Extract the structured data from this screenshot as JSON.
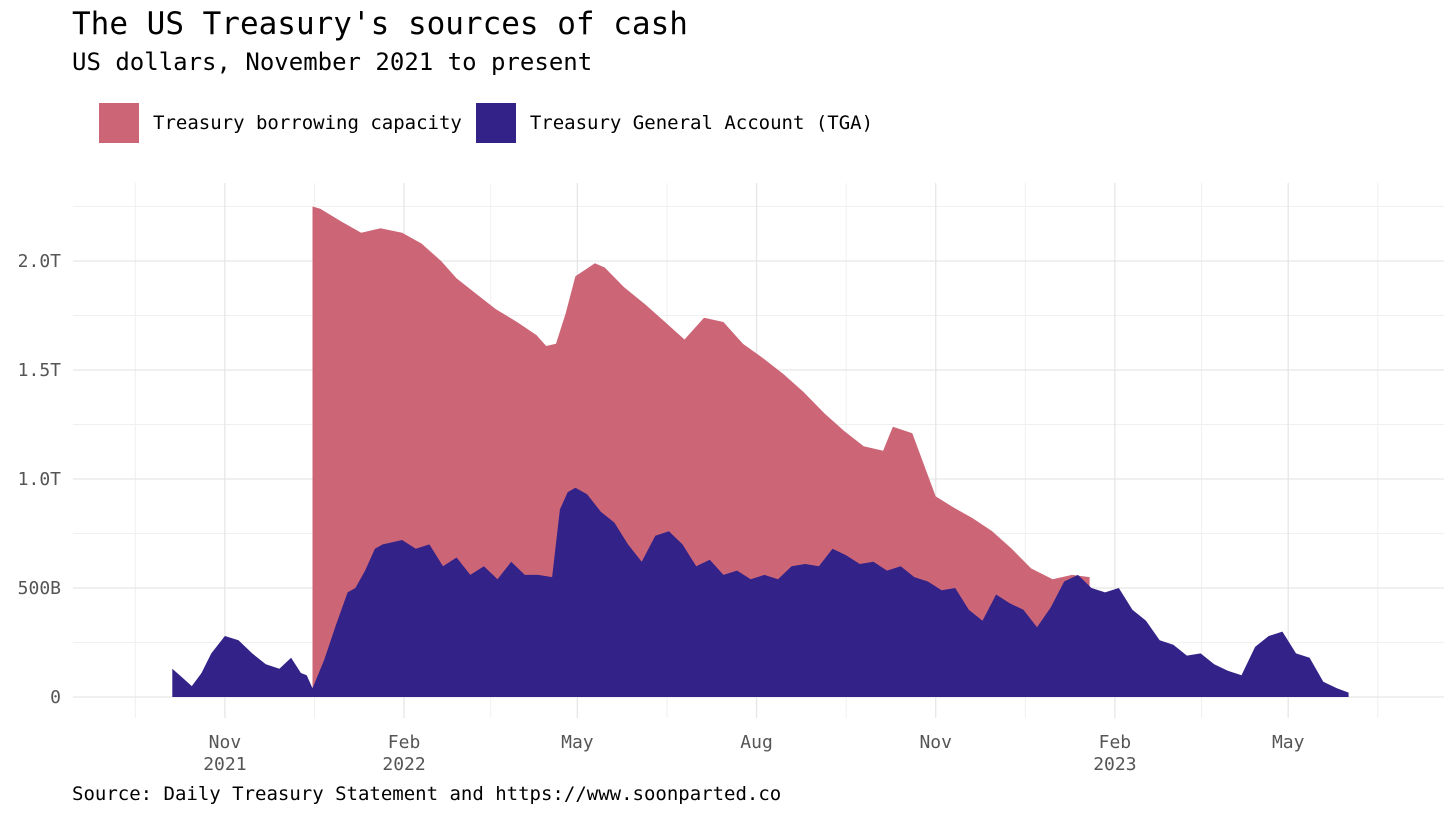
{
  "chart_data": {
    "type": "area",
    "title": "The US Treasury's sources of cash",
    "subtitle": "US dollars, November 2021 to present",
    "source": "Source: Daily Treasury Statement and https://www.soonparted.co",
    "xlabel": "",
    "ylabel": "",
    "xlim": [
      "2021-08-15",
      "2023-07-20"
    ],
    "ylim": [
      0,
      2300000000000
    ],
    "y_ticks": [
      {
        "value": 0,
        "label": "0"
      },
      {
        "value": 500000000000,
        "label": "500B"
      },
      {
        "value": 1000000000000,
        "label": "1.0T"
      },
      {
        "value": 1500000000000,
        "label": "1.5T"
      },
      {
        "value": 2000000000000,
        "label": "2.0T"
      }
    ],
    "x_ticks": [
      {
        "date": "2021-11-01",
        "label": "Nov",
        "sublabel": "2021"
      },
      {
        "date": "2022-02-01",
        "label": "Feb",
        "sublabel": "2022"
      },
      {
        "date": "2022-05-01",
        "label": "May",
        "sublabel": ""
      },
      {
        "date": "2022-08-01",
        "label": "Aug",
        "sublabel": ""
      },
      {
        "date": "2022-11-01",
        "label": "Nov",
        "sublabel": ""
      },
      {
        "date": "2023-02-01",
        "label": "Feb",
        "sublabel": "2023"
      },
      {
        "date": "2023-05-01",
        "label": "May",
        "sublabel": ""
      }
    ],
    "grid": true,
    "legend_position": "top-left",
    "series": [
      {
        "name": "Treasury borrowing capacity",
        "color": "#cc6677",
        "stack": "total",
        "x": [
          "2021-12-16",
          "2021-12-20",
          "2021-12-31",
          "2022-01-10",
          "2022-01-20",
          "2022-01-31",
          "2022-02-10",
          "2022-02-20",
          "2022-02-28",
          "2022-03-10",
          "2022-03-20",
          "2022-03-31",
          "2022-04-10",
          "2022-04-15",
          "2022-04-20",
          "2022-04-25",
          "2022-04-30",
          "2022-05-05",
          "2022-05-10",
          "2022-05-15",
          "2022-05-25",
          "2022-06-05",
          "2022-06-15",
          "2022-06-25",
          "2022-07-05",
          "2022-07-15",
          "2022-07-25",
          "2022-08-05",
          "2022-08-15",
          "2022-08-25",
          "2022-09-05",
          "2022-09-15",
          "2022-09-25",
          "2022-10-05",
          "2022-10-10",
          "2022-10-20",
          "2022-11-01",
          "2022-11-10",
          "2022-11-20",
          "2022-11-30",
          "2022-12-10",
          "2022-12-20",
          "2022-12-31",
          "2023-01-10",
          "2023-01-19"
        ],
        "values": [
          2250000000000,
          2240000000000,
          2180000000000,
          2130000000000,
          2150000000000,
          2130000000000,
          2080000000000,
          2000000000000,
          1920000000000,
          1850000000000,
          1780000000000,
          1720000000000,
          1660000000000,
          1610000000000,
          1620000000000,
          1760000000000,
          1930000000000,
          1960000000000,
          1990000000000,
          1970000000000,
          1880000000000,
          1800000000000,
          1720000000000,
          1640000000000,
          1740000000000,
          1720000000000,
          1620000000000,
          1550000000000,
          1480000000000,
          1400000000000,
          1300000000000,
          1220000000000,
          1150000000000,
          1130000000000,
          1240000000000,
          1210000000000,
          920000000000,
          870000000000,
          820000000000,
          760000000000,
          680000000000,
          590000000000,
          540000000000,
          560000000000,
          550000000000
        ]
      },
      {
        "name": "Treasury General Account (TGA)",
        "color": "#332288",
        "stack": "base",
        "x": [
          "2021-10-05",
          "2021-10-10",
          "2021-10-15",
          "2021-10-20",
          "2021-10-25",
          "2021-11-01",
          "2021-11-08",
          "2021-11-15",
          "2021-11-22",
          "2021-11-29",
          "2021-12-05",
          "2021-12-10",
          "2021-12-13",
          "2021-12-16",
          "2021-12-22",
          "2021-12-28",
          "2022-01-03",
          "2022-01-07",
          "2022-01-12",
          "2022-01-17",
          "2022-01-21",
          "2022-01-26",
          "2022-01-31",
          "2022-02-07",
          "2022-02-14",
          "2022-02-21",
          "2022-02-28",
          "2022-03-07",
          "2022-03-14",
          "2022-03-21",
          "2022-03-28",
          "2022-04-04",
          "2022-04-11",
          "2022-04-18",
          "2022-04-22",
          "2022-04-26",
          "2022-04-30",
          "2022-05-06",
          "2022-05-13",
          "2022-05-20",
          "2022-05-27",
          "2022-06-03",
          "2022-06-10",
          "2022-06-17",
          "2022-06-24",
          "2022-07-01",
          "2022-07-08",
          "2022-07-15",
          "2022-07-22",
          "2022-07-29",
          "2022-08-05",
          "2022-08-12",
          "2022-08-19",
          "2022-08-26",
          "2022-09-02",
          "2022-09-09",
          "2022-09-16",
          "2022-09-23",
          "2022-09-30",
          "2022-10-07",
          "2022-10-14",
          "2022-10-21",
          "2022-10-28",
          "2022-11-04",
          "2022-11-11",
          "2022-11-18",
          "2022-11-25",
          "2022-12-02",
          "2022-12-09",
          "2022-12-16",
          "2022-12-23",
          "2022-12-30",
          "2023-01-06",
          "2023-01-13",
          "2023-01-20",
          "2023-01-27",
          "2023-02-03",
          "2023-02-10",
          "2023-02-17",
          "2023-02-24",
          "2023-03-03",
          "2023-03-10",
          "2023-03-17",
          "2023-03-24",
          "2023-03-31",
          "2023-04-07",
          "2023-04-14",
          "2023-04-21",
          "2023-04-28",
          "2023-05-05",
          "2023-05-12",
          "2023-05-19",
          "2023-05-26",
          "2023-06-01"
        ],
        "values": [
          130000000000,
          90000000000,
          50000000000,
          110000000000,
          200000000000,
          280000000000,
          260000000000,
          200000000000,
          150000000000,
          130000000000,
          180000000000,
          110000000000,
          100000000000,
          40000000000,
          170000000000,
          330000000000,
          480000000000,
          500000000000,
          580000000000,
          680000000000,
          700000000000,
          710000000000,
          720000000000,
          680000000000,
          700000000000,
          600000000000,
          640000000000,
          560000000000,
          600000000000,
          540000000000,
          620000000000,
          560000000000,
          560000000000,
          550000000000,
          860000000000,
          940000000000,
          960000000000,
          930000000000,
          850000000000,
          800000000000,
          700000000000,
          620000000000,
          740000000000,
          760000000000,
          700000000000,
          600000000000,
          630000000000,
          560000000000,
          580000000000,
          540000000000,
          560000000000,
          540000000000,
          600000000000,
          610000000000,
          600000000000,
          680000000000,
          650000000000,
          610000000000,
          620000000000,
          580000000000,
          600000000000,
          550000000000,
          530000000000,
          490000000000,
          500000000000,
          400000000000,
          350000000000,
          470000000000,
          430000000000,
          400000000000,
          320000000000,
          410000000000,
          530000000000,
          560000000000,
          500000000000,
          480000000000,
          500000000000,
          400000000000,
          350000000000,
          260000000000,
          240000000000,
          190000000000,
          200000000000,
          150000000000,
          120000000000,
          100000000000,
          230000000000,
          280000000000,
          300000000000,
          200000000000,
          180000000000,
          70000000000,
          40000000000,
          20000000000
        ]
      }
    ]
  }
}
